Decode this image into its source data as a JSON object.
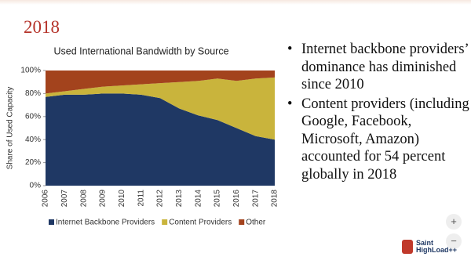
{
  "slide": {
    "title": "2018",
    "bullets": [
      "Internet backbone providers’ dominance has diminished since 2010",
      "Content providers (including Google, Facebook, Microsoft, Amazon) accounted for 54 percent globally in 2018"
    ],
    "logo": {
      "line1": "Saint",
      "line2": "HighLoad++"
    },
    "zoom": {
      "in": "+",
      "out": "−"
    }
  },
  "chart_data": {
    "type": "stacked_area",
    "title": "Used International Bandwidth by Source",
    "y_label": "Share of Used Capacity",
    "categories": [
      "2006",
      "2007",
      "2008",
      "2009",
      "2010",
      "2011",
      "2012",
      "2013",
      "2014",
      "2015",
      "2016",
      "2017",
      "2018"
    ],
    "series": [
      {
        "name": "Internet Backbone Providers",
        "color": "#1f3864",
        "values": [
          77,
          79,
          79,
          80,
          80,
          79,
          76,
          67,
          61,
          57,
          50,
          43,
          40
        ]
      },
      {
        "name": "Content Providers",
        "color": "#c9b43c",
        "values": [
          3,
          3,
          5,
          6,
          7,
          9,
          13,
          23,
          30,
          36,
          41,
          50,
          54
        ]
      },
      {
        "name": "Other",
        "color": "#a3431d",
        "values": [
          20,
          18,
          16,
          14,
          13,
          12,
          11,
          10,
          9,
          7,
          9,
          7,
          6
        ]
      }
    ],
    "ylim": [
      0,
      100
    ],
    "yticks": [
      {
        "value": 0,
        "label": "0%"
      },
      {
        "value": 20,
        "label": "20%"
      },
      {
        "value": 40,
        "label": "40%"
      },
      {
        "value": 60,
        "label": "60%"
      },
      {
        "value": 80,
        "label": "80%"
      },
      {
        "value": 100,
        "label": "100%"
      }
    ],
    "legend": "bottom"
  }
}
